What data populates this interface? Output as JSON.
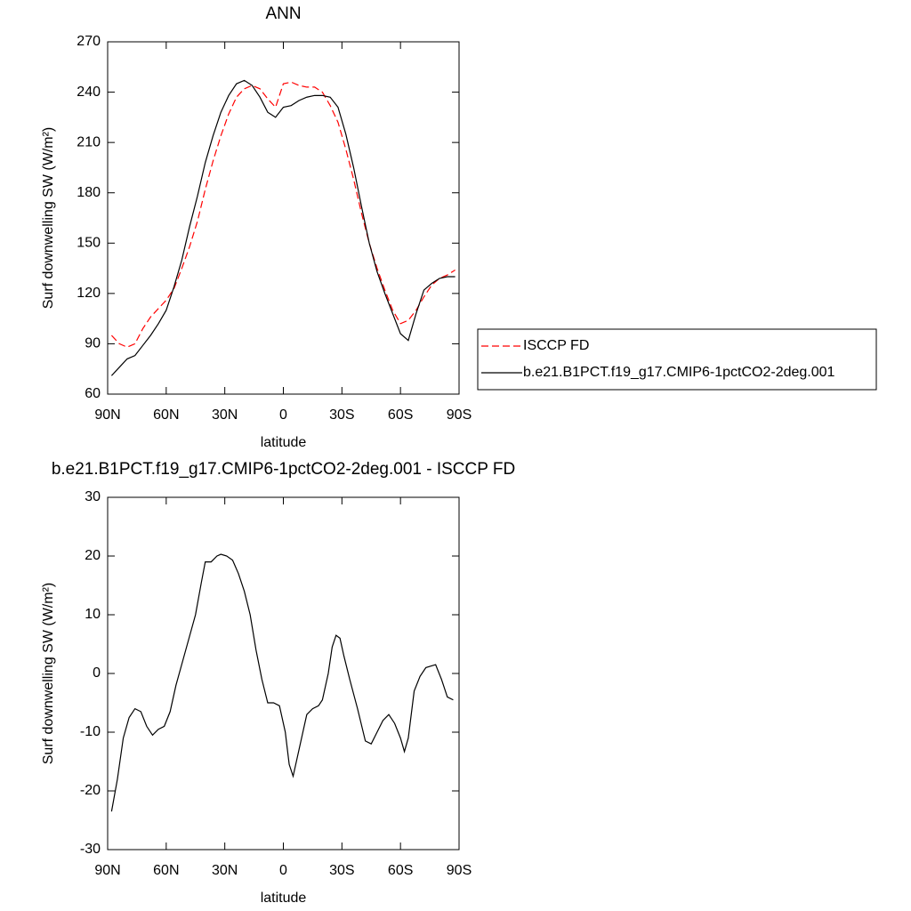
{
  "chart_data": [
    {
      "type": "line",
      "title": "ANN",
      "xlabel": "latitude",
      "ylabel": "Surf downwelling SW (W/m²)",
      "xlim": [
        90,
        -90
      ],
      "ylim": [
        60,
        270
      ],
      "xticks": [
        {
          "value": 90,
          "label": "90N"
        },
        {
          "value": 60,
          "label": "60N"
        },
        {
          "value": 30,
          "label": "30N"
        },
        0,
        {
          "value": -30,
          "label": "30S"
        },
        {
          "value": -60,
          "label": "60S"
        },
        {
          "value": -90,
          "label": "90S"
        }
      ],
      "yticks": [
        60,
        90,
        120,
        150,
        180,
        210,
        240,
        270
      ],
      "legend": "right",
      "x": [
        88,
        84,
        80,
        76,
        72,
        68,
        64,
        60,
        56,
        52,
        48,
        44,
        40,
        36,
        32,
        28,
        24,
        20,
        16,
        12,
        8,
        4,
        0,
        -4,
        -8,
        -12,
        -16,
        -20,
        -24,
        -28,
        -32,
        -36,
        -40,
        -44,
        -48,
        -52,
        -56,
        -60,
        -64,
        -68,
        -72,
        -76,
        -80,
        -84,
        -88
      ],
      "series": [
        {
          "name": "ISCCP FD",
          "color": "#ff0000",
          "dash": true,
          "values": [
            95,
            90,
            88,
            90,
            99,
            106,
            111,
            116,
            123,
            135,
            148,
            163,
            182,
            199,
            214,
            227,
            237,
            242,
            244,
            242,
            236,
            231,
            245,
            246,
            244,
            243,
            243,
            240,
            232,
            222,
            206,
            188,
            168,
            150,
            135,
            122,
            110,
            102,
            104,
            110,
            118,
            125,
            129,
            131,
            134
          ]
        },
        {
          "name": "b.e21.B1PCT.f19_g17.CMIP6-1pctCO2-2deg.001",
          "color": "#000000",
          "dash": false,
          "values": [
            71,
            76,
            81,
            83,
            89,
            95,
            102,
            110,
            124,
            140,
            160,
            178,
            198,
            214,
            228,
            238,
            245,
            247,
            244,
            237,
            228,
            225,
            231,
            232,
            235,
            237,
            238,
            238,
            237,
            231,
            215,
            195,
            172,
            150,
            133,
            120,
            108,
            96,
            92,
            108,
            122,
            126,
            129,
            130,
            130
          ]
        }
      ]
    },
    {
      "type": "line",
      "title": "b.e21.B1PCT.f19_g17.CMIP6-1pctCO2-2deg.001 - ISCCP FD",
      "xlabel": "latitude",
      "ylabel": "Surf downwelling SW (W/m²)",
      "xlim": [
        90,
        -90
      ],
      "ylim": [
        -30,
        30
      ],
      "xticks": [
        {
          "value": 90,
          "label": "90N"
        },
        {
          "value": 60,
          "label": "60N"
        },
        {
          "value": 30,
          "label": "30N"
        },
        0,
        {
          "value": -30,
          "label": "30S"
        },
        {
          "value": -60,
          "label": "60S"
        },
        {
          "value": -90,
          "label": "90S"
        }
      ],
      "yticks": [
        -30,
        -20,
        -10,
        0,
        10,
        20,
        30
      ],
      "color": "#000000",
      "x": [
        88,
        85,
        82,
        79,
        76,
        73,
        70,
        67,
        64,
        61,
        58,
        55,
        50,
        45,
        42,
        40,
        37,
        34,
        32,
        29,
        26,
        23,
        20,
        17,
        14,
        11,
        8,
        5,
        2,
        -1,
        -3,
        -5,
        -7,
        -10,
        -12,
        -15,
        -18,
        -20,
        -23,
        -25,
        -27,
        -29,
        -31,
        -34,
        -38,
        -42,
        -45,
        -48,
        -51,
        -54,
        -57,
        -60,
        -62,
        -64,
        -67,
        -70,
        -73,
        -78,
        -81,
        -84,
        -87
      ],
      "values": [
        -23.5,
        -18,
        -11,
        -7.5,
        -6,
        -6.5,
        -9,
        -10.5,
        -9.5,
        -9,
        -6.5,
        -2,
        4,
        10,
        15.5,
        19,
        19,
        20,
        20.3,
        20,
        19.3,
        17,
        14,
        10,
        4,
        -1,
        -5,
        -5,
        -5.5,
        -10,
        -15.5,
        -17.5,
        -14.5,
        -10,
        -7,
        -6,
        -5.5,
        -4.5,
        0,
        4.5,
        6.5,
        6,
        3,
        -1,
        -6,
        -11.5,
        -12,
        -10,
        -8,
        -7,
        -8.5,
        -11,
        -13.3,
        -11,
        -3,
        -0.5,
        1,
        1.5,
        -1,
        -4,
        -4.5
      ]
    }
  ]
}
